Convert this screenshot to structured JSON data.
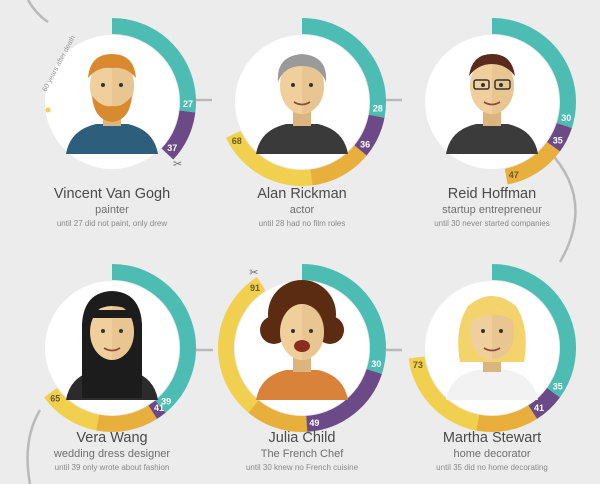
{
  "colors": {
    "background": "#ececec",
    "teal": "#4dbdb4",
    "purple": "#6c4a87",
    "gold": "#f1cf4f",
    "orange": "#e0952e",
    "line": "#b9b9b9"
  },
  "scale_max": 100,
  "people": [
    {
      "name": "Vincent Van Gogh",
      "role": "painter",
      "note": "until 27 did not paint, only drew",
      "teal_until": 27,
      "purple_until": 37,
      "gold_until": null,
      "markers": [
        "27",
        "37"
      ],
      "scissors_at": 37,
      "death_note": "60 years after death",
      "avatar": "van-gogh-portrait"
    },
    {
      "name": "Alan Rickman",
      "role": "actor",
      "note": "until 28 had no film roles",
      "teal_until": 28,
      "purple_until": 36,
      "gold_until": 68,
      "markers": [
        "28",
        "36",
        "68"
      ],
      "avatar": "rickman-portrait"
    },
    {
      "name": "Reid Hoffman",
      "role": "startup entrepreneur",
      "note": "until 30 never started companies",
      "teal_until": 30,
      "purple_until": 35,
      "gold_until": 47,
      "markers": [
        "30",
        "35",
        "47"
      ],
      "avatar": "hoffman-portrait"
    },
    {
      "name": "Vera Wang",
      "role": "wedding dress designer",
      "note": "until 39 only wrote about fashion",
      "teal_until": 39,
      "purple_until": 41,
      "gold_until": 65,
      "markers": [
        "39",
        "41",
        "65"
      ],
      "avatar": "wang-portrait"
    },
    {
      "name": "Julia Child",
      "role": "The French Chef",
      "note": "until 30 knew no French cuisine",
      "teal_until": 30,
      "purple_until": 49,
      "gold_until": 91,
      "markers": [
        "30",
        "49",
        "91"
      ],
      "scissors_at": 91,
      "avatar": "child-portrait"
    },
    {
      "name": "Martha Stewart",
      "role": "home decorator",
      "note": "until 35 did no home decorating",
      "teal_until": 35,
      "purple_until": 41,
      "gold_until": 73,
      "markers": [
        "35",
        "41",
        "73"
      ],
      "avatar": "stewart-portrait"
    }
  ]
}
